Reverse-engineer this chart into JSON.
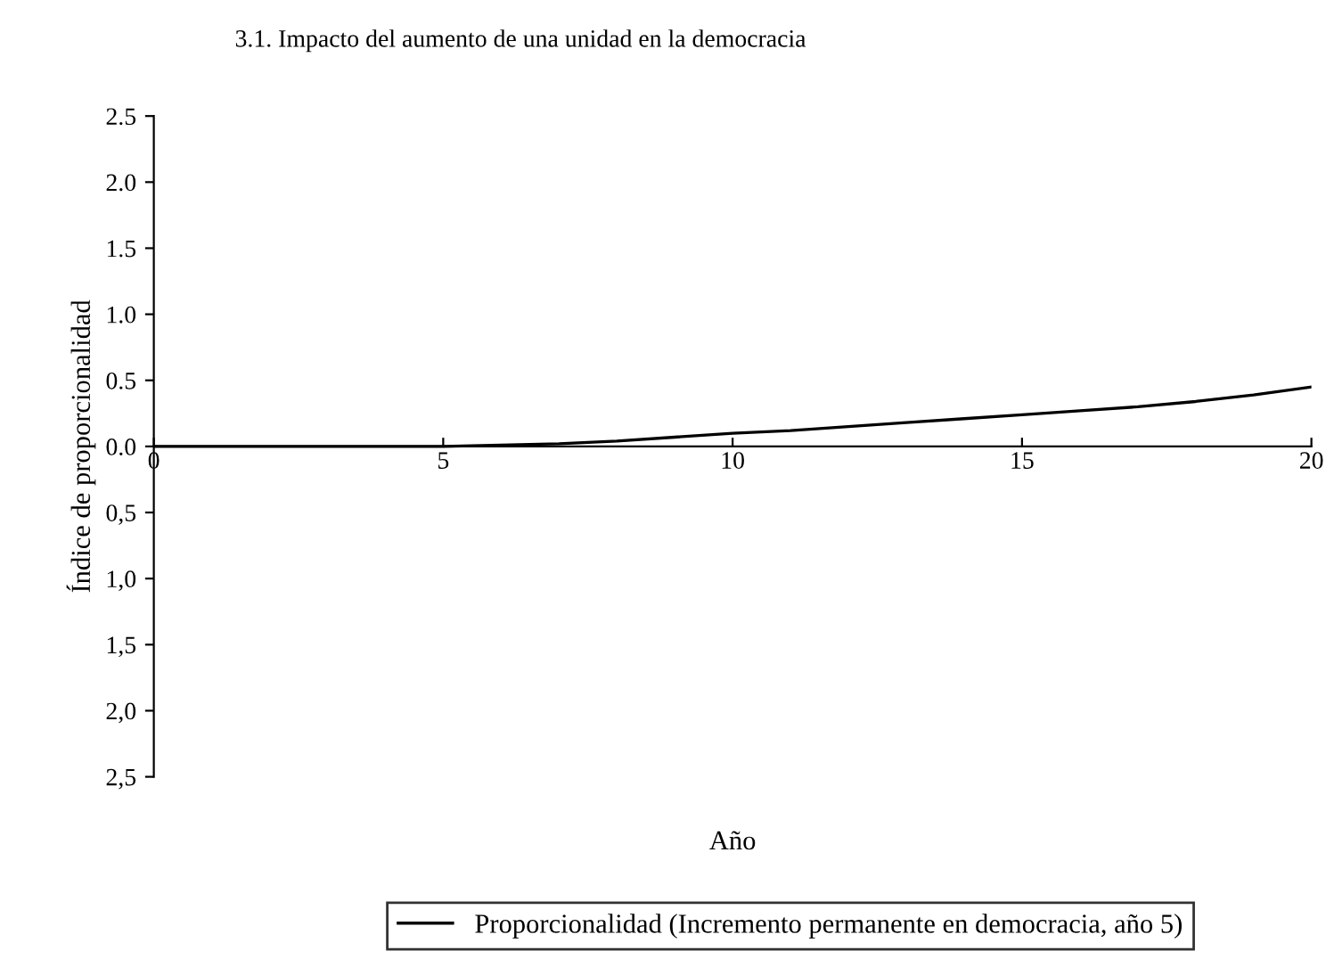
{
  "chart_data": {
    "type": "line",
    "title": "3.1. Impacto del aumento de una unidad en la democracia",
    "xlabel": "Año",
    "ylabel": "Índice de proporcionalidad",
    "x": [
      0,
      1,
      2,
      3,
      4,
      5,
      6,
      7,
      8,
      9,
      10,
      11,
      12,
      13,
      14,
      15,
      16,
      17,
      18,
      19,
      20
    ],
    "series": [
      {
        "name": "Proporcionalidad (Incremento permanente en democracia, año 5)",
        "color": "#000000",
        "values": [
          0,
          0,
          0,
          0,
          0,
          0,
          0.01,
          0.02,
          0.04,
          0.07,
          0.1,
          0.12,
          0.15,
          0.18,
          0.21,
          0.24,
          0.27,
          0.3,
          0.34,
          0.39,
          0.45
        ]
      }
    ],
    "xlim": [
      0,
      20
    ],
    "xticks": [
      0,
      5,
      10,
      15,
      20
    ],
    "ylim": [
      -2.5,
      2.5
    ],
    "yticks": [
      {
        "value": 2.5,
        "label": "2.5"
      },
      {
        "value": 2.0,
        "label": "2.0"
      },
      {
        "value": 1.5,
        "label": "1.5"
      },
      {
        "value": 1.0,
        "label": "1.0"
      },
      {
        "value": 0.5,
        "label": "0.5"
      },
      {
        "value": 0.0,
        "label": "0.0"
      },
      {
        "value": -0.5,
        "label": "0,5"
      },
      {
        "value": -1.0,
        "label": "1,0"
      },
      {
        "value": -1.5,
        "label": "1,5"
      },
      {
        "value": -2.0,
        "label": "2,0"
      },
      {
        "value": -2.5,
        "label": "2,5"
      }
    ],
    "legend": "bottom",
    "grid": false,
    "marker": "none",
    "line_style": "solid"
  }
}
